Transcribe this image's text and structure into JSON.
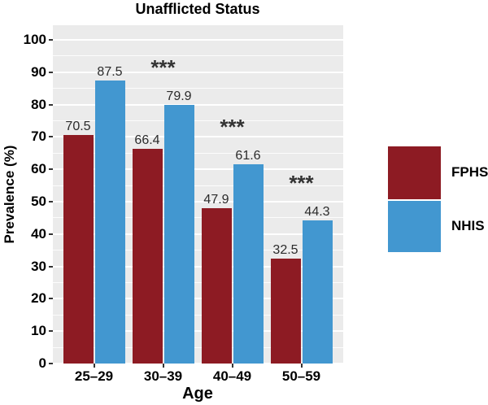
{
  "colors": {
    "fphs": "#8D1B23",
    "nhis": "#4297D0",
    "panel_background": "#EBEBEB",
    "gridline": "#FFFFFF",
    "text": "#000000",
    "value_label_text": "#2B2B2B"
  },
  "chart_data": {
    "type": "bar",
    "title": "Unafflicted Status",
    "xlabel": "Age",
    "ylabel": "Prevalence (%)",
    "categories": [
      "25–29",
      "30–39",
      "40–49",
      "50–59"
    ],
    "series": [
      {
        "name": "FPHS",
        "color": "#8D1B23",
        "values": [
          70.5,
          66.4,
          47.9,
          32.5
        ]
      },
      {
        "name": "NHIS",
        "color": "#4297D0",
        "values": [
          87.5,
          79.9,
          61.6,
          44.3
        ]
      }
    ],
    "value_labels": {
      "FPHS": [
        "70.5",
        "66.4",
        "47.9",
        "32.5"
      ],
      "NHIS": [
        "87.5",
        "79.9",
        "61.6",
        "44.3"
      ]
    },
    "annotations": [
      {
        "text": "***",
        "category": "30–39",
        "category_index": 1
      },
      {
        "text": "***",
        "category": "40–49",
        "category_index": 2
      },
      {
        "text": "***",
        "category": "50–59",
        "category_index": 3
      }
    ],
    "y_ticks": [
      0,
      10,
      20,
      30,
      40,
      50,
      60,
      70,
      80,
      90,
      100
    ],
    "ylim": [
      0,
      105
    ],
    "grid": true,
    "grid_minor_step": 5,
    "legend_position": "right",
    "legend_entries": [
      "FPHS",
      "NHIS"
    ]
  }
}
